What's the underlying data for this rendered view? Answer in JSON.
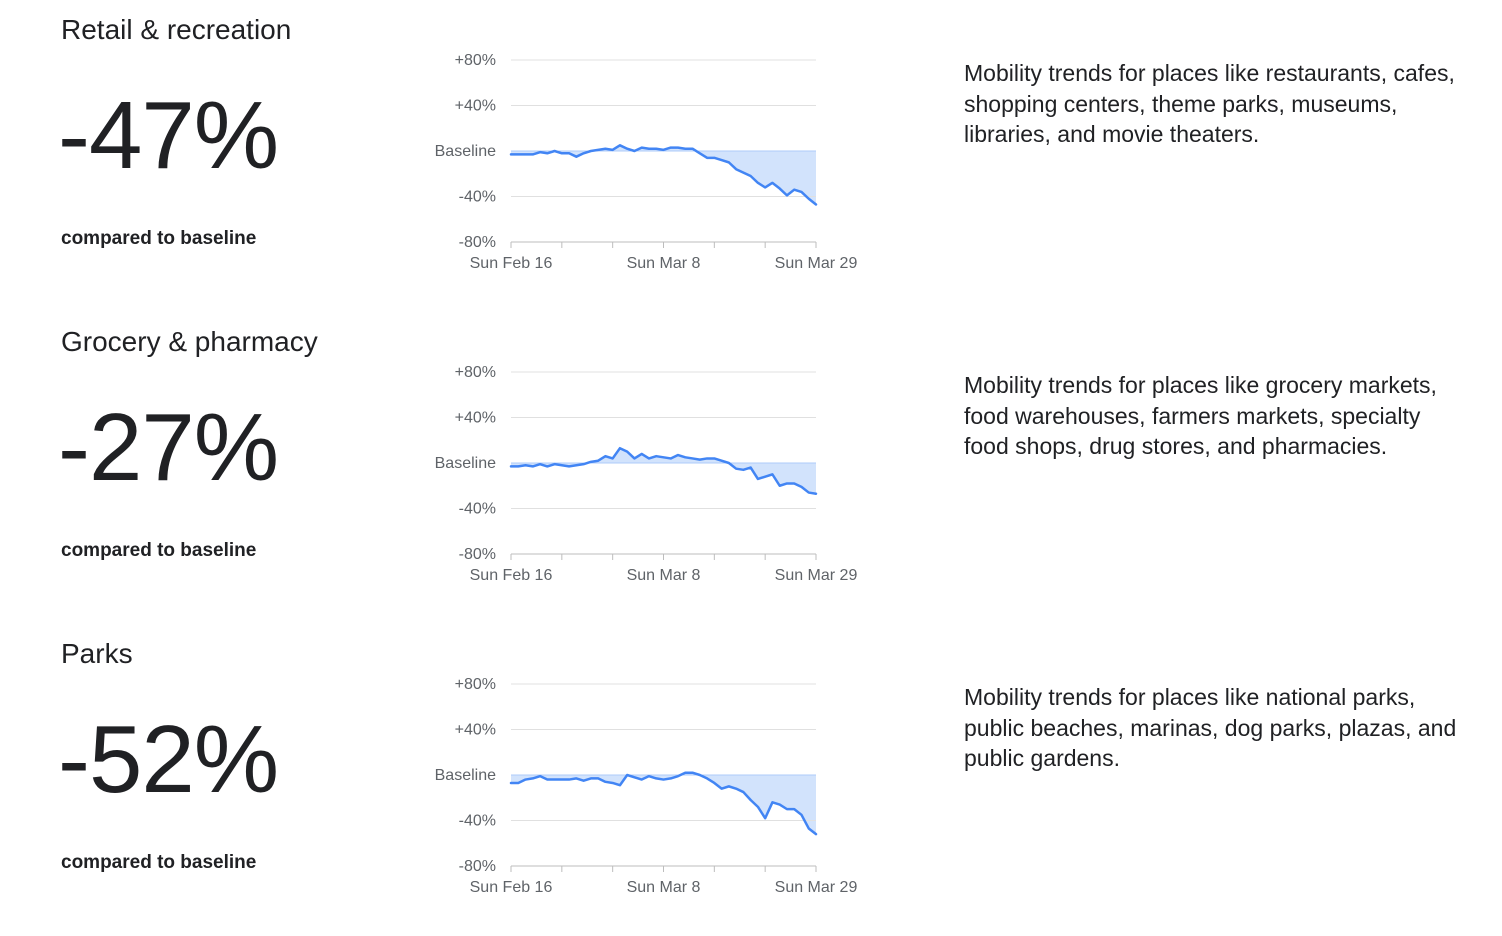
{
  "sections": [
    {
      "title": "Retail & recreation",
      "value": "-47%",
      "compare_label": "compared to baseline",
      "description": "Mobility trends for places like restaurants, cafes, shopping centers, theme parks, museums, libraries, and movie theaters."
    },
    {
      "title": "Grocery & pharmacy",
      "value": "-27%",
      "compare_label": "compared to baseline",
      "description": "Mobility trends for places like grocery markets, food warehouses, farmers markets, specialty food shops, drug stores, and pharmacies."
    },
    {
      "title": "Parks",
      "value": "-52%",
      "compare_label": "compared to baseline",
      "description": "Mobility trends for places like national parks, public beaches, marinas, dog parks, plazas, and public gardens."
    }
  ],
  "colors": {
    "line": "#4285f4",
    "fill": "#d2e3fc",
    "grid": "#e0e0e0",
    "axis": "#bdbdbd",
    "tick_text": "#5f6368"
  },
  "chart_data": [
    {
      "type": "line",
      "y_tick_labels": [
        "+80%",
        "+40%",
        "Baseline",
        "-40%",
        "-80%"
      ],
      "y_ticks": [
        80,
        40,
        0,
        -40,
        -80
      ],
      "ylim": [
        -80,
        80
      ],
      "x_tick_labels": [
        "Sun Feb 16",
        "Sun Mar 8",
        "Sun Mar 29"
      ],
      "x_ticks": [
        "2020-02-16",
        "2020-03-08",
        "2020-03-29"
      ],
      "x_start": "2020-02-16",
      "x_end": "2020-03-29",
      "grid": true,
      "fill_below_baseline": true,
      "values": [
        -3,
        -3,
        -3,
        -3,
        -1,
        -2,
        0,
        -2,
        -2,
        -5,
        -2,
        0,
        1,
        2,
        1,
        5,
        2,
        0,
        3,
        2,
        2,
        1,
        3,
        3,
        2,
        2,
        -2,
        -6,
        -6,
        -8,
        -10,
        -16,
        -19,
        -22,
        -28,
        -32,
        -28,
        -33,
        -39,
        -34,
        -36,
        -42,
        -47
      ]
    },
    {
      "type": "line",
      "y_tick_labels": [
        "+80%",
        "+40%",
        "Baseline",
        "-40%",
        "-80%"
      ],
      "y_ticks": [
        80,
        40,
        0,
        -40,
        -80
      ],
      "ylim": [
        -80,
        80
      ],
      "x_tick_labels": [
        "Sun Feb 16",
        "Sun Mar 8",
        "Sun Mar 29"
      ],
      "x_ticks": [
        "2020-02-16",
        "2020-03-08",
        "2020-03-29"
      ],
      "x_start": "2020-02-16",
      "x_end": "2020-03-29",
      "grid": true,
      "fill_below_baseline": true,
      "values": [
        -3,
        -3,
        -2,
        -3,
        -1,
        -3,
        -1,
        -2,
        -3,
        -2,
        -1,
        1,
        2,
        6,
        4,
        13,
        10,
        4,
        8,
        4,
        6,
        5,
        4,
        7,
        5,
        4,
        3,
        4,
        4,
        2,
        0,
        -5,
        -6,
        -4,
        -14,
        -12,
        -10,
        -20,
        -18,
        -18,
        -21,
        -26,
        -27
      ]
    },
    {
      "type": "line",
      "y_tick_labels": [
        "+80%",
        "+40%",
        "Baseline",
        "-40%",
        "-80%"
      ],
      "y_ticks": [
        80,
        40,
        0,
        -40,
        -80
      ],
      "ylim": [
        -80,
        80
      ],
      "x_tick_labels": [
        "Sun Feb 16",
        "Sun Mar 8",
        "Sun Mar 29"
      ],
      "x_ticks": [
        "2020-02-16",
        "2020-03-08",
        "2020-03-29"
      ],
      "x_start": "2020-02-16",
      "x_end": "2020-03-29",
      "grid": true,
      "fill_below_baseline": true,
      "values": [
        -7,
        -7,
        -4,
        -3,
        -1,
        -4,
        -4,
        -4,
        -4,
        -3,
        -5,
        -3,
        -3,
        -6,
        -7,
        -9,
        0,
        -2,
        -4,
        -1,
        -3,
        -4,
        -3,
        -1,
        2,
        2,
        0,
        -3,
        -7,
        -12,
        -10,
        -12,
        -15,
        -22,
        -28,
        -38,
        -24,
        -26,
        -30,
        -30,
        -35,
        -47,
        -52
      ]
    }
  ]
}
